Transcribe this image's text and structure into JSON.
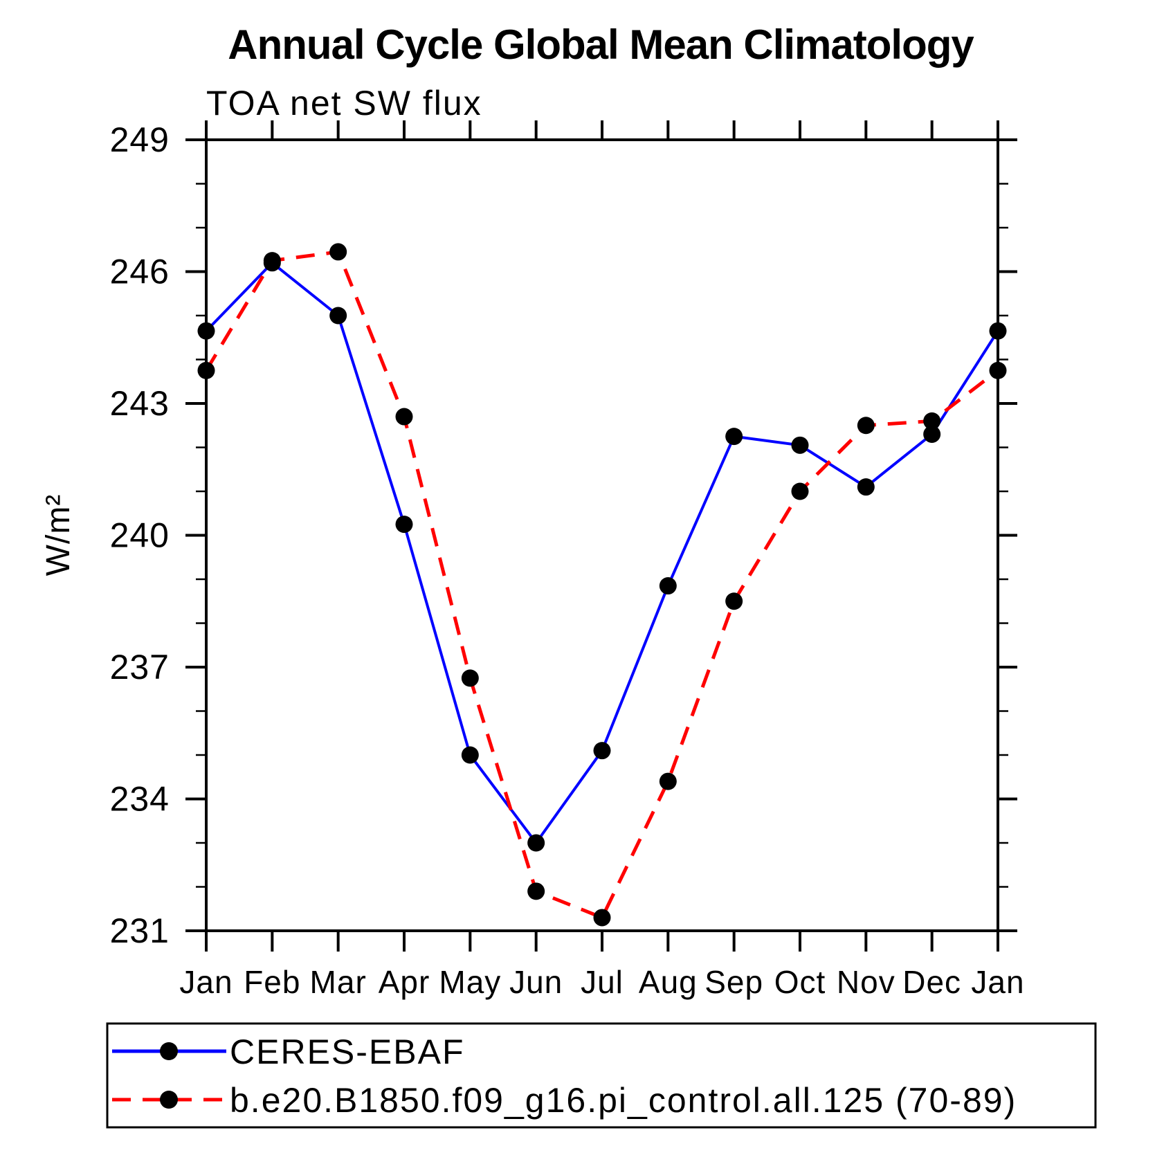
{
  "chart_data": {
    "type": "line",
    "title": "Annual Cycle Global Mean Climatology",
    "subtitle": "TOA net SW flux",
    "xlabel": "",
    "ylabel": "W/m²",
    "categories": [
      "Jan",
      "Feb",
      "Mar",
      "Apr",
      "May",
      "Jun",
      "Jul",
      "Aug",
      "Sep",
      "Oct",
      "Nov",
      "Dec",
      "Jan"
    ],
    "ylim": [
      231,
      249
    ],
    "yticks_major": [
      231,
      234,
      237,
      240,
      243,
      246,
      249
    ],
    "yticks_minor_step": 1,
    "grid": false,
    "legend_position": "bottom-left-box",
    "axis_color": "#000000",
    "marker_color": "#000000",
    "background": "#ffffff",
    "series": [
      {
        "name": "CERES-EBAF",
        "color": "#0000ff",
        "style": "solid",
        "marker": "black-dot",
        "values": [
          244.65,
          246.2,
          245.0,
          240.25,
          235.0,
          233.0,
          235.1,
          238.85,
          242.25,
          242.05,
          241.1,
          242.3,
          244.65
        ]
      },
      {
        "name": "b.e20.B1850.f09_g16.pi_control.all.125 (70-89)",
        "color": "#ff0000",
        "style": "dashed",
        "marker": "black-dot",
        "values": [
          243.75,
          246.25,
          246.45,
          242.7,
          236.75,
          231.9,
          231.3,
          234.4,
          238.5,
          241.0,
          242.5,
          242.6,
          243.75
        ]
      }
    ]
  }
}
